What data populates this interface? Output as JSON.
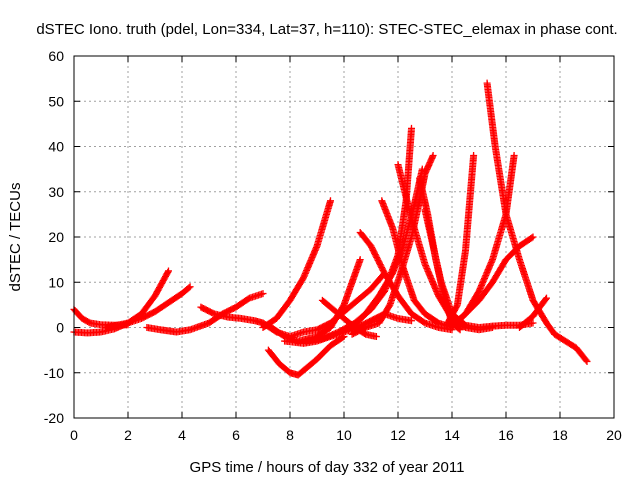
{
  "chart_data": {
    "type": "scatter",
    "title": "dSTEC Iono. truth (pdel, Lon=334, Lat=37, h=110): STEC-STEC_elemax in phase cont.",
    "xlabel": "GPS time / hours of day 332 of year 2011",
    "ylabel": "dSTEC  / TECUs",
    "xlim": [
      0,
      20
    ],
    "ylim": [
      -20,
      60
    ],
    "xticks": [
      0,
      2,
      4,
      6,
      8,
      10,
      12,
      14,
      16,
      18,
      20
    ],
    "yticks": [
      -20,
      -10,
      0,
      10,
      20,
      30,
      40,
      50,
      60
    ],
    "grid": true,
    "legend": "none",
    "marker": "plus",
    "color": "#ff0000",
    "arcs": [
      [
        [
          0.0,
          4.0
        ],
        [
          0.3,
          2.0
        ],
        [
          0.6,
          1.0
        ],
        [
          1.0,
          0.6
        ],
        [
          1.5,
          0.5
        ],
        [
          2.0,
          0.6
        ]
      ],
      [
        [
          0.0,
          -1.0
        ],
        [
          0.5,
          -1.2
        ],
        [
          1.0,
          -1.0
        ],
        [
          1.5,
          -0.3
        ],
        [
          2.0,
          1.0
        ],
        [
          2.5,
          3.0
        ],
        [
          3.0,
          7.0
        ],
        [
          3.5,
          12.5
        ]
      ],
      [
        [
          1.2,
          0.0
        ],
        [
          2.0,
          1.0
        ],
        [
          2.5,
          2.0
        ],
        [
          3.0,
          3.5
        ],
        [
          3.5,
          5.5
        ],
        [
          4.0,
          7.5
        ],
        [
          4.3,
          9.0
        ]
      ],
      [
        [
          2.7,
          0.0
        ],
        [
          3.2,
          -0.5
        ],
        [
          3.8,
          -1.0
        ],
        [
          4.3,
          -0.5
        ],
        [
          5.0,
          1.0
        ],
        [
          5.5,
          3.0
        ],
        [
          6.0,
          4.5
        ],
        [
          6.5,
          6.5
        ],
        [
          7.0,
          7.5
        ]
      ],
      [
        [
          4.7,
          4.5
        ],
        [
          5.2,
          3.0
        ],
        [
          5.7,
          2.3
        ],
        [
          6.2,
          2.0
        ],
        [
          6.7,
          1.5
        ],
        [
          7.0,
          1.0
        ]
      ],
      [
        [
          7.0,
          1.0
        ],
        [
          7.5,
          -1.0
        ],
        [
          8.0,
          -2.0
        ],
        [
          8.5,
          -1.0
        ],
        [
          9.0,
          -0.5
        ],
        [
          9.5,
          1.0
        ],
        [
          10.0,
          3.5
        ],
        [
          10.5,
          6.0
        ],
        [
          11.0,
          8.5
        ],
        [
          11.5,
          12.0
        ]
      ],
      [
        [
          7.0,
          0.0
        ],
        [
          7.5,
          2.0
        ],
        [
          8.0,
          6.0
        ],
        [
          8.5,
          11.0
        ],
        [
          9.0,
          18.0
        ],
        [
          9.5,
          28.0
        ]
      ],
      [
        [
          7.2,
          -5.0
        ],
        [
          7.6,
          -8.0
        ],
        [
          8.0,
          -10.0
        ],
        [
          8.3,
          -10.5
        ],
        [
          8.6,
          -9.0
        ],
        [
          9.0,
          -7.0
        ],
        [
          9.5,
          -4.0
        ],
        [
          10.0,
          -2.0
        ]
      ],
      [
        [
          7.2,
          0.5
        ],
        [
          7.8,
          -2.0
        ],
        [
          8.3,
          -3.0
        ],
        [
          9.0,
          -2.0
        ],
        [
          9.5,
          0.0
        ],
        [
          10.0,
          5.0
        ],
        [
          10.3,
          10.0
        ],
        [
          10.6,
          15.0
        ]
      ],
      [
        [
          7.8,
          -3.0
        ],
        [
          8.5,
          -3.5
        ],
        [
          9.0,
          -3.0
        ],
        [
          9.5,
          -2.0
        ],
        [
          10.0,
          -1.0
        ],
        [
          10.5,
          0.0
        ],
        [
          11.0,
          1.5
        ],
        [
          11.5,
          3.0
        ],
        [
          12.0,
          2.0
        ],
        [
          12.5,
          1.5
        ]
      ],
      [
        [
          9.2,
          6.0
        ],
        [
          9.8,
          3.0
        ],
        [
          10.3,
          0.5
        ],
        [
          10.8,
          -1.5
        ],
        [
          11.2,
          -2.0
        ]
      ],
      [
        [
          8.6,
          -3.0
        ],
        [
          9.2,
          -2.5
        ],
        [
          9.8,
          -1.0
        ],
        [
          10.4,
          1.0
        ],
        [
          11.0,
          4.0
        ],
        [
          11.5,
          8.0
        ],
        [
          12.0,
          16.0
        ],
        [
          12.3,
          28.0
        ],
        [
          12.5,
          44.0
        ]
      ],
      [
        [
          9.8,
          -1.0
        ],
        [
          10.3,
          0.0
        ],
        [
          10.8,
          3.0
        ],
        [
          11.3,
          7.0
        ],
        [
          11.8,
          12.0
        ],
        [
          12.2,
          18.0
        ],
        [
          12.6,
          27.0
        ],
        [
          12.9,
          35.0
        ]
      ],
      [
        [
          10.3,
          -1.5
        ],
        [
          10.8,
          0.0
        ],
        [
          11.3,
          1.0
        ],
        [
          11.7,
          5.0
        ],
        [
          12.1,
          12.0
        ],
        [
          12.5,
          20.0
        ],
        [
          12.8,
          28.0
        ],
        [
          13.0,
          34.0
        ],
        [
          13.3,
          38.0
        ]
      ],
      [
        [
          10.6,
          21.0
        ],
        [
          11.0,
          18.0
        ],
        [
          11.5,
          12.0
        ],
        [
          12.0,
          7.0
        ],
        [
          12.5,
          3.0
        ],
        [
          13.0,
          1.0
        ],
        [
          13.5,
          0.0
        ],
        [
          14.0,
          -0.5
        ]
      ],
      [
        [
          11.4,
          28.0
        ],
        [
          11.8,
          22.0
        ],
        [
          12.2,
          13.0
        ],
        [
          12.6,
          6.0
        ],
        [
          13.0,
          3.0
        ],
        [
          13.5,
          1.0
        ],
        [
          14.0,
          0.0
        ]
      ],
      [
        [
          12.0,
          36.0
        ],
        [
          12.5,
          24.0
        ],
        [
          13.0,
          14.0
        ],
        [
          13.5,
          7.0
        ],
        [
          14.0,
          2.0
        ],
        [
          14.5,
          0.0
        ],
        [
          15.0,
          -0.5
        ],
        [
          15.5,
          0.0
        ]
      ],
      [
        [
          12.8,
          33.0
        ],
        [
          13.1,
          25.0
        ],
        [
          13.4,
          15.0
        ],
        [
          13.7,
          7.0
        ],
        [
          14.0,
          1.0
        ],
        [
          14.3,
          -0.5
        ]
      ],
      [
        [
          13.0,
          26.0
        ],
        [
          13.3,
          18.0
        ],
        [
          13.6,
          10.0
        ],
        [
          14.0,
          3.0
        ],
        [
          14.5,
          0.5
        ],
        [
          15.0,
          0.0
        ],
        [
          15.5,
          0.3
        ],
        [
          16.0,
          0.5
        ],
        [
          16.5,
          0.5
        ],
        [
          17.0,
          1.0
        ]
      ],
      [
        [
          13.8,
          0.5
        ],
        [
          14.2,
          5.0
        ],
        [
          14.5,
          17.0
        ],
        [
          14.8,
          38.0
        ]
      ],
      [
        [
          14.0,
          0.0
        ],
        [
          14.5,
          3.0
        ],
        [
          15.0,
          8.0
        ],
        [
          15.5,
          15.0
        ],
        [
          16.0,
          25.0
        ],
        [
          16.3,
          38.0
        ]
      ],
      [
        [
          14.0,
          0.5
        ],
        [
          14.5,
          3.0
        ],
        [
          15.0,
          6.0
        ],
        [
          15.5,
          10.0
        ],
        [
          16.0,
          15.0
        ],
        [
          16.5,
          18.0
        ],
        [
          17.0,
          20.0
        ]
      ],
      [
        [
          15.3,
          54.0
        ],
        [
          15.6,
          40.0
        ],
        [
          16.0,
          25.0
        ],
        [
          16.5,
          15.0
        ],
        [
          17.0,
          6.0
        ],
        [
          17.5,
          1.0
        ],
        [
          17.8,
          -1.5
        ],
        [
          18.2,
          -3.0
        ],
        [
          18.6,
          -4.5
        ],
        [
          19.0,
          -7.5
        ]
      ],
      [
        [
          16.5,
          0.0
        ],
        [
          17.0,
          2.5
        ],
        [
          17.5,
          6.5
        ]
      ]
    ]
  }
}
